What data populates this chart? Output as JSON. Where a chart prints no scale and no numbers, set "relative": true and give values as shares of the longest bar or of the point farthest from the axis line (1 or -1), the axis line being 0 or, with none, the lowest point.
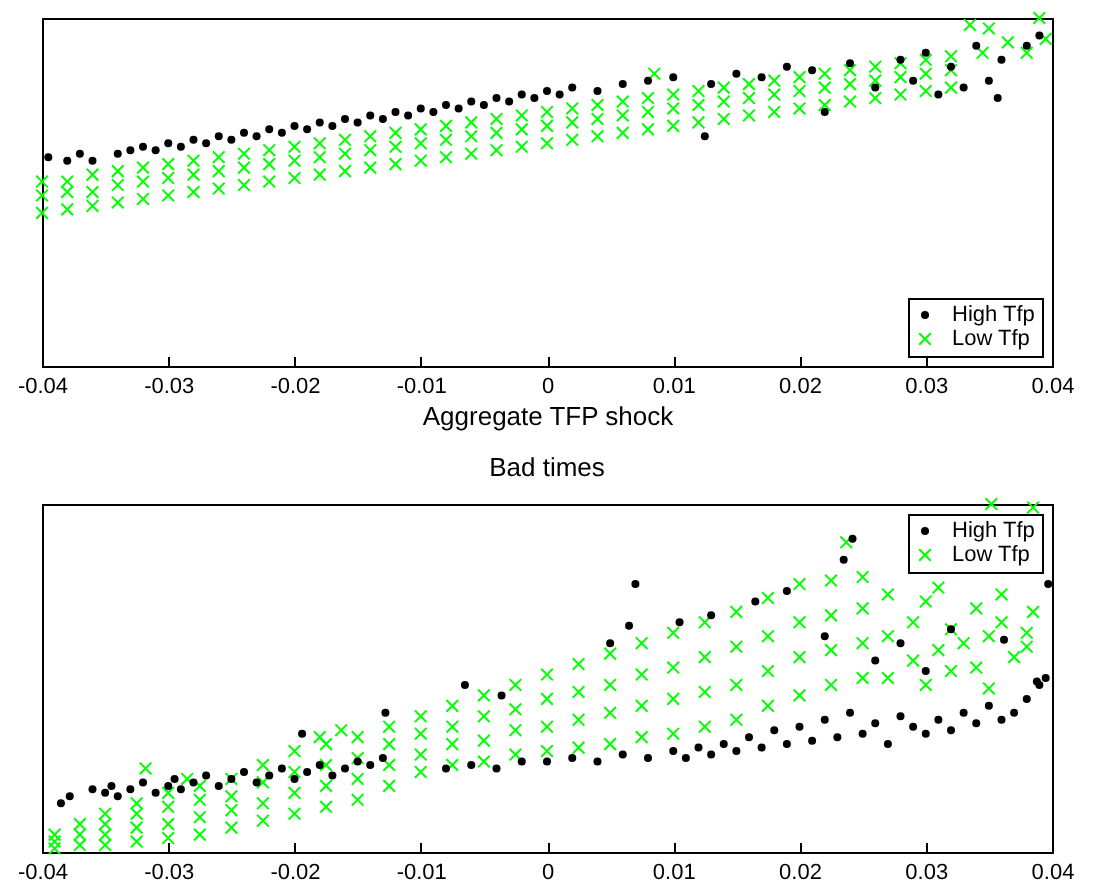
{
  "chart_data": [
    {
      "type": "scatter",
      "xlabel": "Aggregate TFP shock",
      "xlim": [
        -0.04,
        0.04
      ],
      "xticks": [
        -0.04,
        -0.03,
        -0.02,
        -0.01,
        0,
        0.01,
        0.02,
        0.03,
        0.04
      ],
      "relative": true,
      "legend": "bottom right",
      "series": [
        {
          "name": "High Tfp",
          "color": "#000000",
          "marker": "circle",
          "x": [
            -0.0395,
            -0.038,
            -0.037,
            -0.036,
            -0.034,
            -0.033,
            -0.032,
            -0.031,
            -0.03,
            -0.029,
            -0.028,
            -0.027,
            -0.026,
            -0.025,
            -0.024,
            -0.023,
            -0.022,
            -0.021,
            -0.02,
            -0.019,
            -0.018,
            -0.017,
            -0.016,
            -0.015,
            -0.014,
            -0.013,
            -0.012,
            -0.011,
            -0.01,
            -0.009,
            -0.008,
            -0.007,
            -0.006,
            -0.005,
            -0.004,
            -0.003,
            -0.002,
            -0.001,
            0,
            0.001,
            0.002,
            0.004,
            0.006,
            0.008,
            0.01,
            0.0125,
            0.013,
            0.015,
            0.017,
            0.019,
            0.021,
            0.022,
            0.024,
            0.026,
            0.028,
            0.029,
            0.03,
            0.031,
            0.032,
            0.033,
            0.034,
            0.035,
            0.036,
            0.0357,
            0.038,
            0.039
          ],
          "values": [
            0.6,
            0.59,
            0.61,
            0.59,
            0.61,
            0.62,
            0.63,
            0.62,
            0.64,
            0.63,
            0.65,
            0.64,
            0.66,
            0.65,
            0.67,
            0.66,
            0.68,
            0.67,
            0.69,
            0.68,
            0.7,
            0.69,
            0.71,
            0.7,
            0.72,
            0.71,
            0.73,
            0.72,
            0.74,
            0.73,
            0.75,
            0.74,
            0.76,
            0.75,
            0.77,
            0.76,
            0.78,
            0.77,
            0.79,
            0.78,
            0.8,
            0.79,
            0.81,
            0.82,
            0.83,
            0.66,
            0.81,
            0.84,
            0.83,
            0.86,
            0.85,
            0.73,
            0.87,
            0.8,
            0.88,
            0.82,
            0.9,
            0.78,
            0.86,
            0.8,
            0.92,
            0.82,
            0.88,
            0.77,
            0.92,
            0.95
          ]
        },
        {
          "name": "Low Tfp",
          "color": "#00ff00",
          "marker": "cross",
          "x": [
            -0.04,
            -0.04,
            -0.04,
            -0.038,
            -0.038,
            -0.038,
            -0.036,
            -0.036,
            -0.036,
            -0.034,
            -0.034,
            -0.034,
            -0.032,
            -0.032,
            -0.032,
            -0.03,
            -0.03,
            -0.03,
            -0.028,
            -0.028,
            -0.028,
            -0.026,
            -0.026,
            -0.026,
            -0.024,
            -0.024,
            -0.024,
            -0.022,
            -0.022,
            -0.022,
            -0.02,
            -0.02,
            -0.02,
            -0.018,
            -0.018,
            -0.018,
            -0.016,
            -0.016,
            -0.016,
            -0.014,
            -0.014,
            -0.014,
            -0.012,
            -0.012,
            -0.012,
            -0.01,
            -0.01,
            -0.01,
            -0.008,
            -0.008,
            -0.008,
            -0.006,
            -0.006,
            -0.006,
            -0.004,
            -0.004,
            -0.004,
            -0.002,
            -0.002,
            -0.002,
            0,
            0,
            0,
            0.002,
            0.002,
            0.002,
            0.004,
            0.004,
            0.004,
            0.006,
            0.006,
            0.006,
            0.008,
            0.008,
            0.008,
            0.01,
            0.01,
            0.01,
            0.012,
            0.012,
            0.012,
            0.014,
            0.014,
            0.014,
            0.016,
            0.016,
            0.016,
            0.018,
            0.018,
            0.018,
            0.02,
            0.02,
            0.02,
            0.022,
            0.022,
            0.022,
            0.024,
            0.024,
            0.024,
            0.026,
            0.026,
            0.026,
            0.028,
            0.028,
            0.028,
            0.03,
            0.03,
            0.03,
            0.032,
            0.032,
            0.032,
            0.0085,
            0.0335,
            0.0345,
            0.035,
            0.0365,
            0.038,
            0.039,
            0.0395
          ],
          "values": [
            0.44,
            0.49,
            0.53,
            0.45,
            0.5,
            0.53,
            0.46,
            0.5,
            0.55,
            0.47,
            0.52,
            0.56,
            0.48,
            0.53,
            0.57,
            0.49,
            0.54,
            0.58,
            0.5,
            0.55,
            0.59,
            0.51,
            0.56,
            0.6,
            0.52,
            0.57,
            0.61,
            0.53,
            0.58,
            0.62,
            0.54,
            0.59,
            0.63,
            0.55,
            0.6,
            0.64,
            0.56,
            0.61,
            0.65,
            0.57,
            0.62,
            0.66,
            0.58,
            0.63,
            0.67,
            0.59,
            0.64,
            0.68,
            0.6,
            0.65,
            0.69,
            0.61,
            0.66,
            0.7,
            0.62,
            0.67,
            0.71,
            0.63,
            0.68,
            0.72,
            0.64,
            0.69,
            0.73,
            0.65,
            0.7,
            0.74,
            0.66,
            0.71,
            0.75,
            0.67,
            0.72,
            0.76,
            0.68,
            0.73,
            0.77,
            0.69,
            0.74,
            0.78,
            0.7,
            0.75,
            0.79,
            0.71,
            0.76,
            0.8,
            0.72,
            0.77,
            0.81,
            0.73,
            0.78,
            0.82,
            0.74,
            0.79,
            0.83,
            0.75,
            0.8,
            0.84,
            0.76,
            0.81,
            0.85,
            0.77,
            0.82,
            0.86,
            0.78,
            0.83,
            0.87,
            0.79,
            0.84,
            0.88,
            0.8,
            0.85,
            0.89,
            0.84,
            0.98,
            0.9,
            0.97,
            0.93,
            0.9,
            1,
            0.94
          ]
        }
      ]
    },
    {
      "type": "scatter",
      "title": "Bad times",
      "xlim": [
        -0.04,
        0.04
      ],
      "xticks": [
        -0.04,
        -0.03,
        -0.02,
        -0.01,
        0,
        0.01,
        0.02,
        0.03,
        0.04
      ],
      "relative": true,
      "legend": "top right",
      "series": [
        {
          "name": "High Tfp",
          "color": "#000000",
          "marker": "circle",
          "x": [
            -0.0385,
            -0.0378,
            -0.036,
            -0.035,
            -0.0345,
            -0.034,
            -0.033,
            -0.032,
            -0.031,
            -0.03,
            -0.0295,
            -0.029,
            -0.028,
            -0.027,
            -0.026,
            -0.025,
            -0.024,
            -0.023,
            -0.022,
            -0.021,
            -0.02,
            -0.019,
            -0.018,
            -0.017,
            -0.016,
            -0.015,
            -0.014,
            -0.013,
            -0.008,
            -0.006,
            -0.004,
            -0.002,
            0,
            0.002,
            0.004,
            0.006,
            0.008,
            0.01,
            0.011,
            0.012,
            0.013,
            0.014,
            0.015,
            0.016,
            0.017,
            0.018,
            0.019,
            0.02,
            0.021,
            0.022,
            0.023,
            0.024,
            0.025,
            0.026,
            0.027,
            0.028,
            0.029,
            0.03,
            0.031,
            0.032,
            0.033,
            0.034,
            0.035,
            0.036,
            0.037,
            0.038,
            0.039,
            0.0395,
            -0.0194,
            -0.0128,
            -0.0065,
            -0.0036,
            0.005,
            0.0065,
            0.007,
            0.0105,
            0.013,
            0.0165,
            0.019,
            0.022,
            0.0235,
            0.0242,
            0.026,
            0.028,
            0.03,
            0.032,
            0.0362,
            0.0388,
            0.0397
          ],
          "values": [
            0.14,
            0.16,
            0.18,
            0.17,
            0.19,
            0.16,
            0.18,
            0.2,
            0.17,
            0.19,
            0.21,
            0.18,
            0.2,
            0.22,
            0.19,
            0.21,
            0.23,
            0.2,
            0.22,
            0.24,
            0.21,
            0.23,
            0.25,
            0.22,
            0.24,
            0.26,
            0.25,
            0.27,
            0.24,
            0.25,
            0.24,
            0.26,
            0.26,
            0.27,
            0.26,
            0.28,
            0.27,
            0.29,
            0.27,
            0.3,
            0.28,
            0.31,
            0.29,
            0.33,
            0.3,
            0.35,
            0.31,
            0.36,
            0.32,
            0.38,
            0.33,
            0.4,
            0.34,
            0.37,
            0.31,
            0.39,
            0.36,
            0.34,
            0.38,
            0.35,
            0.4,
            0.37,
            0.42,
            0.38,
            0.4,
            0.44,
            0.48,
            0.5,
            0.34,
            0.4,
            0.48,
            0.45,
            0.6,
            0.65,
            0.77,
            0.66,
            0.68,
            0.72,
            0.75,
            0.62,
            0.84,
            0.9,
            0.55,
            0.6,
            0.52,
            0.64,
            0.61,
            0.49,
            0.77
          ]
        },
        {
          "name": "Low Tfp",
          "color": "#00ff00",
          "marker": "cross",
          "x": [
            -0.039,
            -0.039,
            -0.039,
            -0.037,
            -0.037,
            -0.037,
            -0.035,
            -0.035,
            -0.035,
            -0.035,
            -0.0325,
            -0.0325,
            -0.0325,
            -0.0325,
            -0.03,
            -0.03,
            -0.03,
            -0.03,
            -0.0275,
            -0.0275,
            -0.0275,
            -0.0275,
            -0.025,
            -0.025,
            -0.025,
            -0.025,
            -0.0225,
            -0.0225,
            -0.0225,
            -0.0225,
            -0.02,
            -0.02,
            -0.02,
            -0.02,
            -0.0175,
            -0.0175,
            -0.0175,
            -0.0175,
            -0.015,
            -0.015,
            -0.015,
            -0.015,
            -0.0125,
            -0.0125,
            -0.0125,
            -0.0125,
            -0.01,
            -0.01,
            -0.01,
            -0.01,
            -0.0075,
            -0.0075,
            -0.0075,
            -0.0075,
            -0.005,
            -0.005,
            -0.005,
            -0.005,
            -0.0025,
            -0.0025,
            -0.0025,
            -0.0025,
            0,
            0,
            0,
            0,
            0.0025,
            0.0025,
            0.0025,
            0.0025,
            0.005,
            0.005,
            0.005,
            0.005,
            0.0075,
            0.0075,
            0.0075,
            0.0075,
            0.01,
            0.01,
            0.01,
            0.01,
            0.0125,
            0.0125,
            0.0125,
            0.0125,
            0.015,
            0.015,
            0.015,
            0.015,
            0.0175,
            0.0175,
            0.0175,
            0.0175,
            0.02,
            0.02,
            0.02,
            0.02,
            0.0225,
            0.0225,
            0.0225,
            0.0225,
            0.025,
            0.025,
            0.025,
            0.025,
            0.027,
            0.027,
            0.027,
            0.029,
            0.029,
            0.03,
            0.03,
            0.031,
            0.031,
            0.032,
            0.032,
            0.033,
            0.034,
            0.034,
            0.035,
            0.035,
            0.036,
            0.036,
            0.037,
            0.038,
            0.038,
            0.0385,
            0.0237,
            0.0352,
            0.0385,
            -0.0318,
            -0.0285,
            -0.018,
            -0.0163
          ],
          "values": [
            0.01,
            0.03,
            0.05,
            0.02,
            0.05,
            0.08,
            0.02,
            0.05,
            0.08,
            0.11,
            0.03,
            0.07,
            0.11,
            0.14,
            0.04,
            0.08,
            0.13,
            0.17,
            0.05,
            0.1,
            0.15,
            0.19,
            0.07,
            0.12,
            0.16,
            0.21,
            0.09,
            0.14,
            0.2,
            0.25,
            0.11,
            0.17,
            0.23,
            0.29,
            0.13,
            0.19,
            0.25,
            0.31,
            0.15,
            0.21,
            0.27,
            0.33,
            0.19,
            0.25,
            0.31,
            0.36,
            0.23,
            0.28,
            0.34,
            0.39,
            0.25,
            0.31,
            0.36,
            0.42,
            0.26,
            0.32,
            0.39,
            0.45,
            0.28,
            0.35,
            0.41,
            0.48,
            0.29,
            0.36,
            0.44,
            0.51,
            0.3,
            0.38,
            0.46,
            0.54,
            0.31,
            0.4,
            0.48,
            0.57,
            0.33,
            0.42,
            0.51,
            0.6,
            0.34,
            0.44,
            0.53,
            0.63,
            0.36,
            0.46,
            0.56,
            0.66,
            0.38,
            0.48,
            0.59,
            0.69,
            0.42,
            0.52,
            0.62,
            0.73,
            0.45,
            0.56,
            0.66,
            0.77,
            0.48,
            0.58,
            0.68,
            0.78,
            0.5,
            0.6,
            0.7,
            0.79,
            0.5,
            0.62,
            0.74,
            0.55,
            0.66,
            0.48,
            0.72,
            0.58,
            0.76,
            0.52,
            0.64,
            0.6,
            0.53,
            0.7,
            0.47,
            0.62,
            0.66,
            0.74,
            0.56,
            0.59,
            0.63,
            0.69,
            0.89,
            1,
            0.99,
            0.24,
            0.21,
            0.33,
            0.35
          ]
        }
      ]
    }
  ]
}
